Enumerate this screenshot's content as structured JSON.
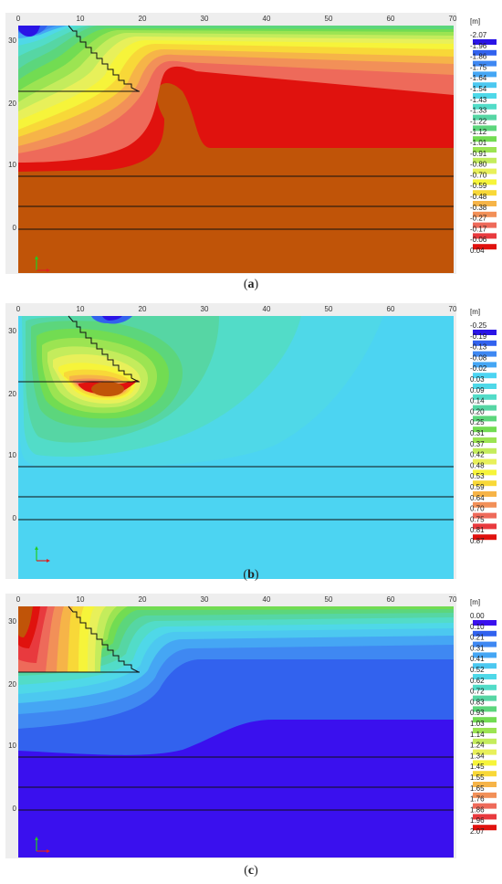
{
  "panels": [
    {
      "id": "a",
      "caption": "a",
      "unit": "[m]",
      "legend_values": [
        "-2.07",
        "-1.96",
        "-1.86",
        "-1.75",
        "-1.64",
        "-1.54",
        "-1.43",
        "-1.33",
        "-1.22",
        "-1.12",
        "-1.01",
        "-0.91",
        "-0.80",
        "-0.70",
        "-0.59",
        "-0.48",
        "-0.38",
        "-0.27",
        "-0.17",
        "-0.06",
        "0.04"
      ],
      "legend_colors": [
        "#2a14e6",
        "#3262ee",
        "#3f88f2",
        "#45a6f4",
        "#4cc8f0",
        "#4fd8e8",
        "#52dcc8",
        "#56d6a4",
        "#5cd67c",
        "#72dc52",
        "#9ce452",
        "#c4ec5c",
        "#e8f05a",
        "#f6f43a",
        "#f8d838",
        "#f6b448",
        "#f29058",
        "#ee6a5a",
        "#e83a3e",
        "#e0120e",
        "#c05408"
      ]
    },
    {
      "id": "b",
      "caption": "b",
      "unit": "[m]",
      "legend_values": [
        "-0.25",
        "-0.19",
        "-0.13",
        "-0.08",
        "-0.02",
        "0.03",
        "0.09",
        "0.14",
        "0.20",
        "0.25",
        "0.31",
        "0.37",
        "0.42",
        "0.48",
        "0.53",
        "0.59",
        "0.64",
        "0.70",
        "0.75",
        "0.81",
        "0.87"
      ],
      "legend_colors": [
        "#2a14e6",
        "#3262ee",
        "#3f88f2",
        "#45a6f4",
        "#4cd4f2",
        "#4fd8e8",
        "#52dcc8",
        "#56d6a4",
        "#5cd67c",
        "#72dc52",
        "#9ce452",
        "#c4ec5c",
        "#e8f05a",
        "#f6f43a",
        "#f8d838",
        "#f6b448",
        "#f29058",
        "#ee6a5a",
        "#e83a3e",
        "#e0120e",
        "#c05408"
      ]
    },
    {
      "id": "c",
      "caption": "c",
      "unit": "[m]",
      "legend_values": [
        "0.00",
        "0.10",
        "0.21",
        "0.31",
        "0.41",
        "0.52",
        "0.62",
        "0.72",
        "0.83",
        "0.93",
        "1.03",
        "1.14",
        "1.24",
        "1.34",
        "1.45",
        "1.55",
        "1.65",
        "1.76",
        "1.86",
        "1.96",
        "2.07"
      ],
      "legend_colors": [
        "#3a10ee",
        "#3262ee",
        "#3f88f2",
        "#45a6f4",
        "#4cc8f0",
        "#4fd8e8",
        "#52dcc8",
        "#56d6a4",
        "#5cd67c",
        "#72dc52",
        "#9ce452",
        "#c4ec5c",
        "#e8f05a",
        "#f6f43a",
        "#f8d838",
        "#f6b448",
        "#f29058",
        "#ee6a5a",
        "#e83a3e",
        "#e0120e",
        "#c05408"
      ]
    }
  ],
  "x_ticks": [
    "0",
    "10",
    "20",
    "30",
    "40",
    "50",
    "60",
    "70"
  ],
  "y_ticks": [
    "30",
    "20",
    "10",
    "0"
  ],
  "fill_colors": {
    "a_base": "#c05408",
    "b_base": "#4cd4f2",
    "c_base": "#3a10ee"
  }
}
